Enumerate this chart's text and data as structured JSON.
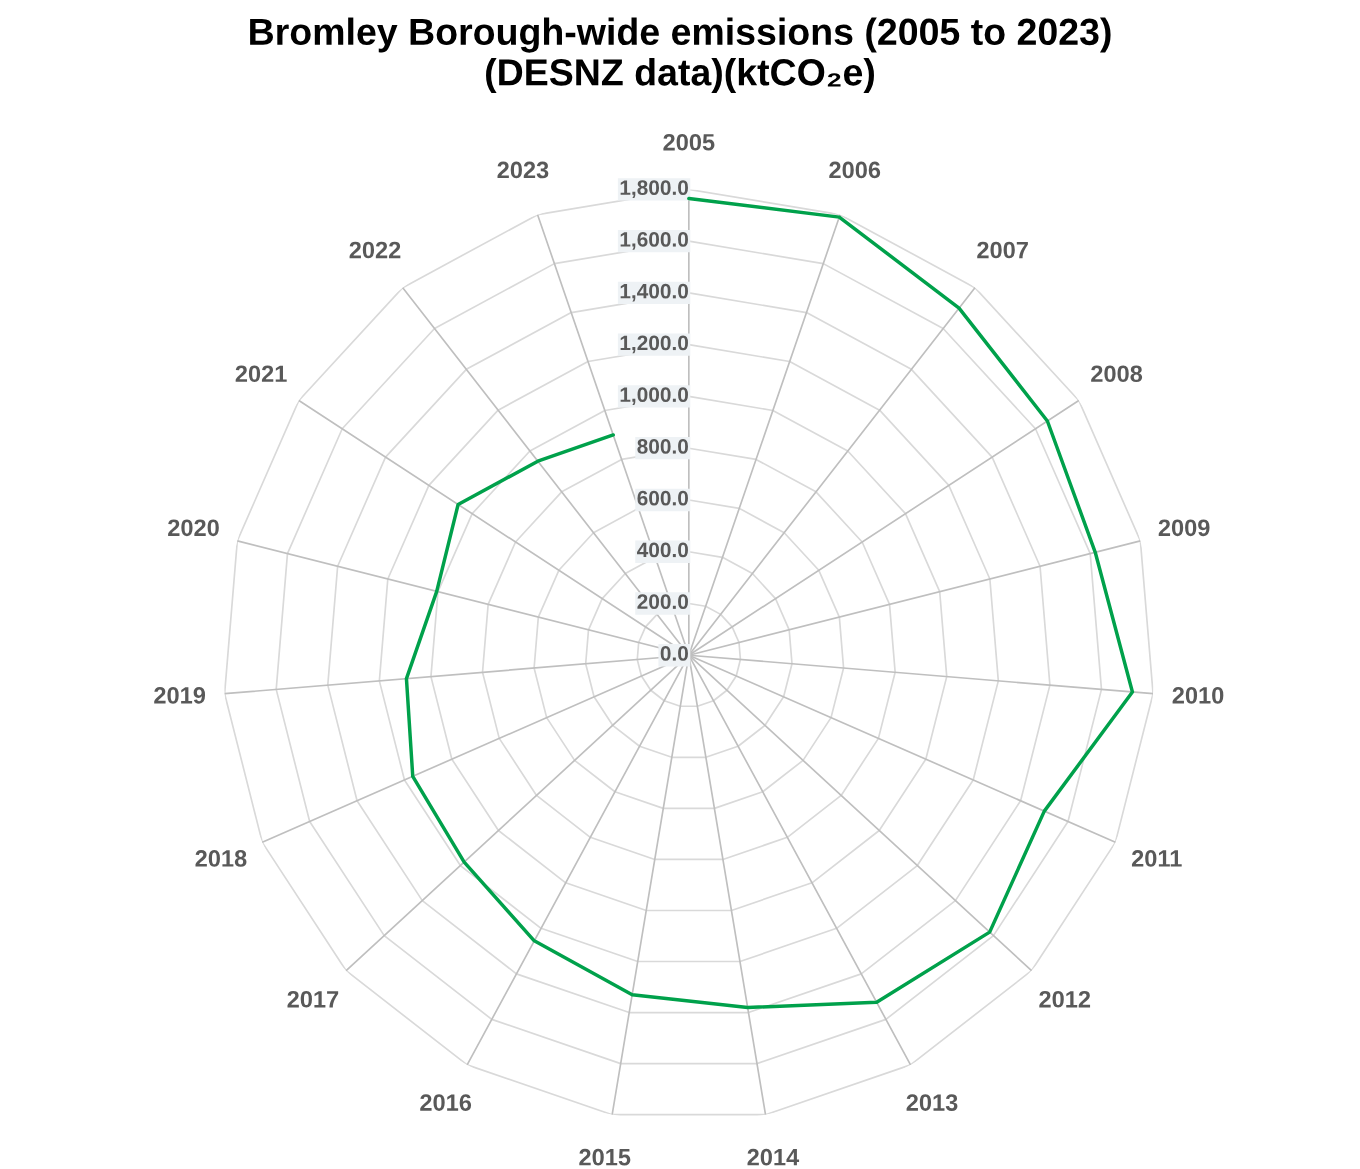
{
  "chart_data": {
    "type": "radar",
    "title": "Bromley Borough-wide emissions (2005 to 2023)\n(DESNZ data)(ktCO₂e)",
    "categories": [
      "2005",
      "2006",
      "2007",
      "2008",
      "2009",
      "2010",
      "2011",
      "2012",
      "2013",
      "2014",
      "2015",
      "2016",
      "2017",
      "2018",
      "2019",
      "2020",
      "2021",
      "2022",
      "2023"
    ],
    "series": [
      {
        "color": "#00a14b",
        "values": [
          1765,
          1790,
          1700,
          1655,
          1620,
          1720,
          1500,
          1580,
          1525,
          1380,
          1330,
          1255,
          1180,
          1165,
          1095,
          1005,
          1065,
          950,
          900
        ]
      }
    ],
    "ylim": [
      0,
      1800
    ],
    "yticks": [
      {
        "value": 0,
        "label": "0.0"
      },
      {
        "value": 200,
        "label": "200.0"
      },
      {
        "value": 400,
        "label": "400.0"
      },
      {
        "value": 600,
        "label": "600.0"
      },
      {
        "value": 800,
        "label": "800.0"
      },
      {
        "value": 1000,
        "label": "1,000.0"
      },
      {
        "value": 1200,
        "label": "1,200.0"
      },
      {
        "value": 1400,
        "label": "1,400.0"
      },
      {
        "value": 1600,
        "label": "1,600.0"
      },
      {
        "value": 1800,
        "label": "1,800.0"
      }
    ],
    "grid": true,
    "marker": "none",
    "line_style": "solid"
  }
}
